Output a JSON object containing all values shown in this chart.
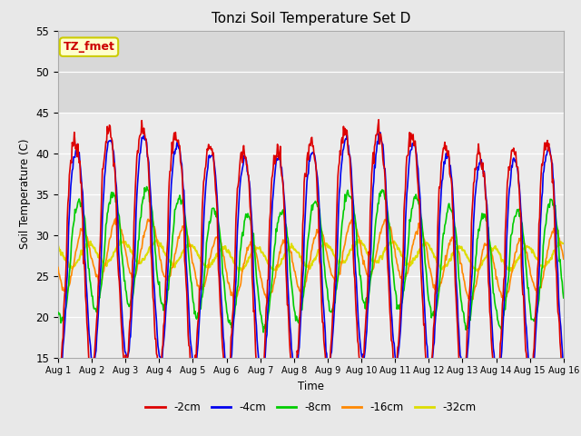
{
  "title": "Tonzi Soil Temperature Set D",
  "xlabel": "Time",
  "ylabel": "Soil Temperature (C)",
  "ylim": [
    15,
    55
  ],
  "xlim": [
    0,
    15
  ],
  "xtick_labels": [
    "Aug 1",
    "Aug 2",
    "Aug 3",
    "Aug 4",
    "Aug 5",
    "Aug 6",
    "Aug 7",
    "Aug 8",
    "Aug 9",
    "Aug 10",
    "Aug 11",
    "Aug 12",
    "Aug 13",
    "Aug 14",
    "Aug 15",
    "Aug 16"
  ],
  "ytick_values": [
    15,
    20,
    25,
    30,
    35,
    40,
    45,
    50,
    55
  ],
  "series": {
    "-2cm": {
      "color": "#dd0000",
      "lw": 1.2
    },
    "-4cm": {
      "color": "#0000ee",
      "lw": 1.2
    },
    "-8cm": {
      "color": "#00cc00",
      "lw": 1.2
    },
    "-16cm": {
      "color": "#ff8800",
      "lw": 1.2
    },
    "-32cm": {
      "color": "#dddd00",
      "lw": 1.5
    }
  },
  "annotation_text": "TZ_fmet",
  "annotation_bg": "#ffffcc",
  "annotation_border": "#cccc00",
  "annotation_text_color": "#cc0000",
  "fig_bg": "#e8e8e8",
  "plot_bg": "#ebebeb",
  "upper_band_bg": "#d8d8d8",
  "upper_band_threshold": 45
}
